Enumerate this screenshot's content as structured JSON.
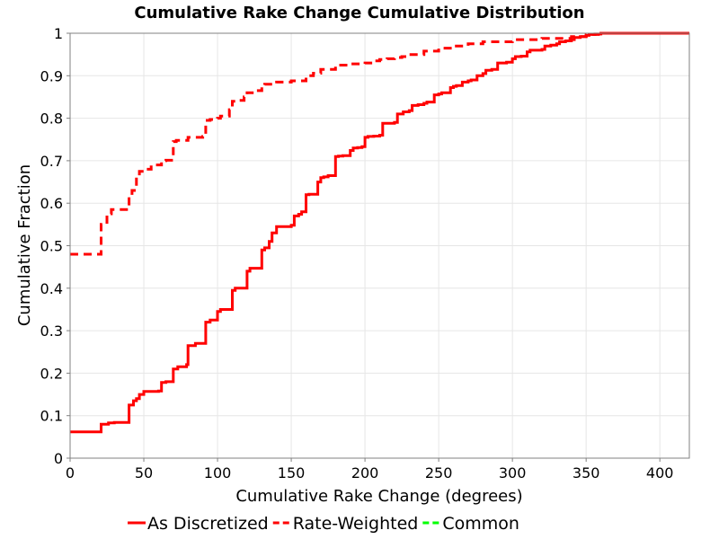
{
  "chart_data": {
    "type": "line",
    "title": "Cumulative Rake Change Cumulative Distribution",
    "xlabel": "Cumulative Rake Change (degrees)",
    "ylabel": "Cumulative Fraction",
    "xlim": [
      0,
      420
    ],
    "ylim": [
      0,
      1
    ],
    "x_ticks": [
      0,
      50,
      100,
      150,
      200,
      250,
      300,
      350,
      400
    ],
    "y_ticks": [
      0,
      0.1,
      0.2,
      0.3,
      0.4,
      0.5,
      0.6,
      0.7,
      0.8,
      0.9,
      1
    ],
    "y_tick_labels": [
      "0",
      "0.1",
      "0.2",
      "0.3",
      "0.4",
      "0.5",
      "0.6",
      "0.7",
      "0.8",
      "0.9",
      "1"
    ],
    "grid": true,
    "legend_position": "bottom",
    "series": [
      {
        "name": "As Discretized",
        "color": "#ff0000",
        "dash": "solid",
        "x": [
          0,
          19,
          21,
          26,
          30,
          40,
          43,
          45,
          47,
          50,
          60,
          62,
          65,
          70,
          73,
          79,
          80,
          85,
          90,
          92,
          95,
          100,
          102,
          110,
          112,
          120,
          122,
          130,
          132,
          135,
          137,
          140,
          150,
          152,
          155,
          157,
          160,
          162,
          168,
          170,
          172,
          175,
          180,
          182,
          185,
          190,
          192,
          195,
          198,
          200,
          202,
          206,
          210,
          212,
          220,
          222,
          226,
          230,
          232,
          236,
          240,
          242,
          247,
          250,
          252,
          258,
          260,
          262,
          266,
          270,
          272,
          276,
          280,
          282,
          286,
          290,
          296,
          300,
          302,
          306,
          310,
          312,
          320,
          322,
          326,
          330,
          332,
          336,
          340,
          342,
          346,
          350,
          352,
          356,
          360,
          362,
          370,
          380,
          420
        ],
        "y": [
          0.062,
          0.062,
          0.08,
          0.083,
          0.084,
          0.125,
          0.135,
          0.14,
          0.15,
          0.157,
          0.158,
          0.178,
          0.18,
          0.21,
          0.215,
          0.22,
          0.265,
          0.27,
          0.27,
          0.32,
          0.325,
          0.345,
          0.35,
          0.395,
          0.4,
          0.44,
          0.447,
          0.49,
          0.495,
          0.51,
          0.53,
          0.545,
          0.548,
          0.57,
          0.574,
          0.58,
          0.62,
          0.621,
          0.65,
          0.66,
          0.662,
          0.665,
          0.71,
          0.711,
          0.712,
          0.724,
          0.73,
          0.731,
          0.733,
          0.755,
          0.757,
          0.758,
          0.76,
          0.788,
          0.79,
          0.81,
          0.815,
          0.818,
          0.83,
          0.832,
          0.835,
          0.838,
          0.855,
          0.857,
          0.86,
          0.872,
          0.875,
          0.877,
          0.885,
          0.888,
          0.89,
          0.9,
          0.905,
          0.913,
          0.915,
          0.93,
          0.932,
          0.94,
          0.945,
          0.946,
          0.956,
          0.96,
          0.962,
          0.97,
          0.972,
          0.975,
          0.98,
          0.982,
          0.985,
          0.99,
          0.992,
          0.995,
          0.997,
          0.998,
          1,
          1,
          1,
          1,
          1
        ]
      },
      {
        "name": "Rate-Weighted",
        "color": "#ff0000",
        "dash": "dashed",
        "x": [
          0,
          19,
          21,
          25,
          28,
          38,
          40,
          42,
          45,
          47,
          50,
          55,
          60,
          62,
          65,
          70,
          72,
          80,
          90,
          92,
          95,
          100,
          102,
          108,
          110,
          112,
          118,
          120,
          125,
          130,
          132,
          140,
          150,
          160,
          165,
          170,
          180,
          190,
          200,
          205,
          210,
          215,
          220,
          225,
          230,
          240,
          250,
          260,
          270,
          280,
          300,
          320,
          340,
          350,
          360,
          420
        ],
        "y": [
          0.48,
          0.48,
          0.55,
          0.575,
          0.585,
          0.585,
          0.615,
          0.63,
          0.665,
          0.675,
          0.68,
          0.69,
          0.69,
          0.7,
          0.701,
          0.745,
          0.748,
          0.755,
          0.757,
          0.795,
          0.797,
          0.8,
          0.805,
          0.82,
          0.84,
          0.842,
          0.85,
          0.86,
          0.865,
          0.876,
          0.88,
          0.885,
          0.888,
          0.9,
          0.906,
          0.915,
          0.925,
          0.928,
          0.93,
          0.935,
          0.938,
          0.94,
          0.943,
          0.945,
          0.95,
          0.958,
          0.965,
          0.97,
          0.975,
          0.98,
          0.985,
          0.988,
          0.992,
          0.997,
          1,
          1
        ]
      },
      {
        "name": "Common",
        "color": "#00ff00",
        "dash": "dashed",
        "x": [],
        "y": []
      }
    ]
  }
}
